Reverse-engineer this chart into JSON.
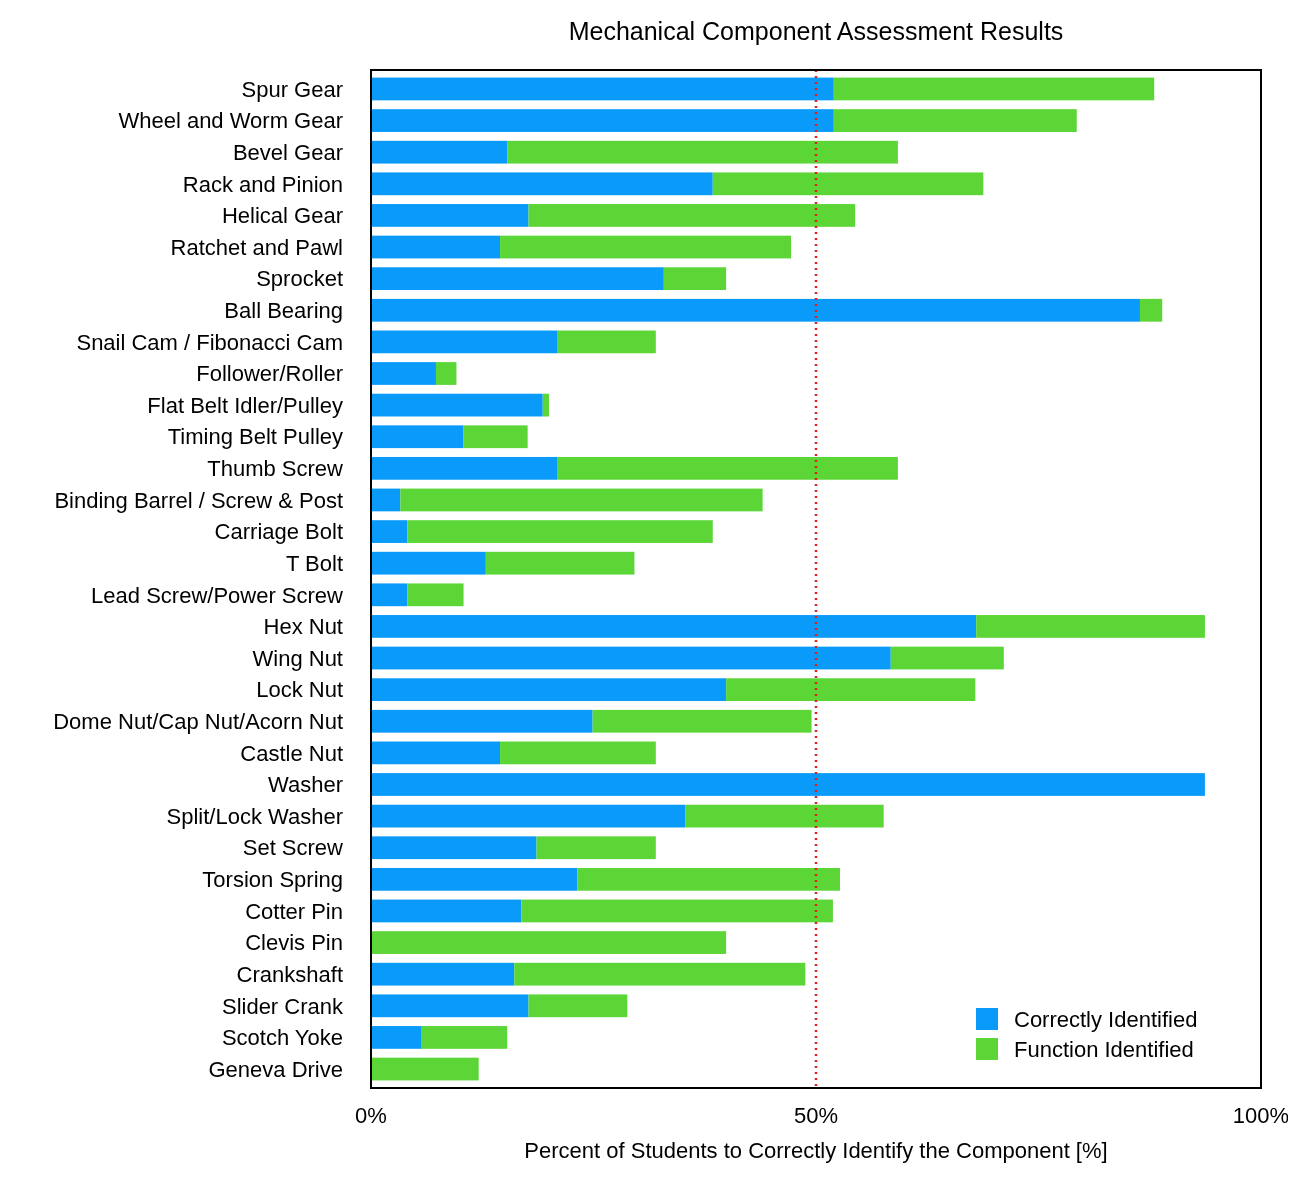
{
  "chart_data": {
    "type": "bar",
    "orientation": "horizontal",
    "stacked": true,
    "title": "Mechanical Component Assessment Results",
    "xlabel": "Percent of Students to Correctly Identify the Component [%]",
    "categories": [
      "Spur Gear",
      "Wheel and Worm Gear",
      "Bevel Gear",
      "Rack and Pinion",
      "Helical Gear",
      "Ratchet and Pawl",
      "Sprocket",
      "Ball Bearing",
      "Snail Cam / Fibonacci Cam",
      "Follower/Roller",
      "Flat Belt Idler/Pulley",
      "Timing Belt Pulley",
      "Thumb Screw",
      "Binding Barrel / Screw & Post",
      "Carriage Bolt",
      "T Bolt",
      "Lead Screw/Power Screw",
      "Hex Nut",
      "Wing Nut",
      "Lock Nut",
      "Dome Nut/Cap Nut/Acorn Nut",
      "Castle Nut",
      "Washer",
      "Split/Lock Washer",
      "Set Screw",
      "Torsion Spring",
      "Cotter Pin",
      "Clevis Pin",
      "Crankshaft",
      "Slider Crank",
      "Scotch Yoke",
      "Geneva Drive"
    ],
    "series": [
      {
        "name": "Correctly Identified",
        "color": "#0a9bfa",
        "values": [
          52,
          52,
          15.3,
          38.4,
          17.7,
          14.5,
          32.9,
          86.4,
          20.9,
          7.3,
          19.3,
          10.4,
          20.9,
          3.3,
          4.1,
          12.9,
          4.1,
          68,
          58.4,
          39.9,
          24.9,
          14.5,
          93.7,
          35.3,
          18.6,
          23.2,
          16.9,
          0,
          16.1,
          17.7,
          5.7,
          0
        ]
      },
      {
        "name": "Function Identified",
        "color": "#5cd637",
        "values": [
          36,
          27.3,
          43.9,
          30.4,
          36.7,
          32.7,
          7,
          2.5,
          11.1,
          2.3,
          0.7,
          7.2,
          38.3,
          40.7,
          34.3,
          16.7,
          6.3,
          25.7,
          12.7,
          28,
          24.6,
          17.5,
          0,
          22.3,
          13.4,
          29.5,
          35,
          39.9,
          32.7,
          11.1,
          9.6,
          12.1
        ]
      }
    ],
    "xlim": [
      0,
      100
    ],
    "xticks": [
      {
        "value": 0,
        "label": "0%"
      },
      {
        "value": 50,
        "label": "50%"
      },
      {
        "value": 100,
        "label": "100%"
      }
    ],
    "ref_lines": [
      {
        "axis": "x",
        "value": 50,
        "color": "#e0201b",
        "line_style": "dotted"
      }
    ],
    "grid": false,
    "legend": "bottom right"
  }
}
